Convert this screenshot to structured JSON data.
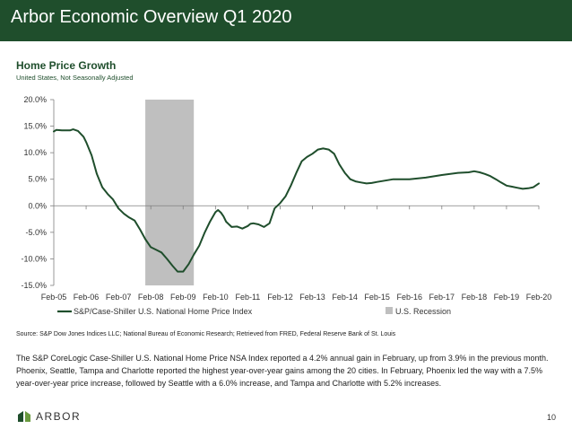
{
  "header": {
    "title": "Arbor Economic Overview Q1 2020"
  },
  "chart_data": {
    "type": "line",
    "title": "Home Price Growth",
    "subtitle": "United States, Not Seasonally Adjusted",
    "xlabel": "",
    "ylabel": "",
    "ylim": [
      -15,
      20
    ],
    "xlim": [
      0,
      15
    ],
    "y_ticks": [
      20,
      15,
      10,
      5,
      0,
      -5,
      -10,
      -15
    ],
    "y_tick_labels": [
      "20.0%",
      "15.0%",
      "10.0%",
      "5.0%",
      "0.0%",
      "-5.0%",
      "-10.0%",
      "-15.0%"
    ],
    "x_ticks": [
      0,
      1,
      2,
      3,
      4,
      5,
      6,
      7,
      8,
      9,
      10,
      11,
      12,
      13,
      14,
      15
    ],
    "x_tick_labels": [
      "Feb-05",
      "Feb-06",
      "Feb-07",
      "Feb-08",
      "Feb-09",
      "Feb-10",
      "Feb-11",
      "Feb-12",
      "Feb-13",
      "Feb-14",
      "Feb-15",
      "Feb-16",
      "Feb-17",
      "Feb-18",
      "Feb-19",
      "Feb-20"
    ],
    "recession": {
      "name": "U.S. Recession",
      "start": 2.83,
      "end": 4.33,
      "color": "#bfbfbf"
    },
    "series": [
      {
        "name": "S&P/Case-Shiller U.S. National Home Price Index",
        "color": "#1f4e2c",
        "x": [
          0,
          0.08,
          0.25,
          0.5,
          0.6,
          0.75,
          0.92,
          1.0,
          1.17,
          1.33,
          1.5,
          1.67,
          1.83,
          2.0,
          2.17,
          2.33,
          2.5,
          2.67,
          2.83,
          3.0,
          3.17,
          3.33,
          3.5,
          3.67,
          3.83,
          4.0,
          4.17,
          4.33,
          4.5,
          4.67,
          4.83,
          5.0,
          5.08,
          5.17,
          5.25,
          5.33,
          5.5,
          5.67,
          5.83,
          6.0,
          6.08,
          6.17,
          6.33,
          6.5,
          6.67,
          6.83,
          7.0,
          7.17,
          7.33,
          7.5,
          7.67,
          7.83,
          8.0,
          8.17,
          8.33,
          8.5,
          8.67,
          8.83,
          9.0,
          9.17,
          9.33,
          9.5,
          9.67,
          9.83,
          10.0,
          10.5,
          11.0,
          11.5,
          12.0,
          12.5,
          12.83,
          13.0,
          13.17,
          13.33,
          13.5,
          13.67,
          13.83,
          14.0,
          14.17,
          14.33,
          14.5,
          14.67,
          14.83,
          15.0
        ],
        "values": [
          14.0,
          14.3,
          14.2,
          14.2,
          14.4,
          14.1,
          13.0,
          12.0,
          9.5,
          6.0,
          3.5,
          2.2,
          1.2,
          -0.5,
          -1.5,
          -2.2,
          -2.8,
          -4.5,
          -6.3,
          -7.8,
          -8.3,
          -8.8,
          -10.0,
          -11.3,
          -12.4,
          -12.4,
          -11.0,
          -9.2,
          -7.5,
          -5.0,
          -3.0,
          -1.2,
          -0.8,
          -1.3,
          -2.0,
          -3.0,
          -4.0,
          -3.9,
          -4.3,
          -3.8,
          -3.4,
          -3.3,
          -3.5,
          -4.0,
          -3.3,
          -0.5,
          0.5,
          1.8,
          3.8,
          6.2,
          8.4,
          9.2,
          9.8,
          10.6,
          10.8,
          10.6,
          9.8,
          7.8,
          6.2,
          5.0,
          4.6,
          4.4,
          4.2,
          4.3,
          4.5,
          5.0,
          5.0,
          5.3,
          5.8,
          6.2,
          6.3,
          6.5,
          6.3,
          6.0,
          5.6,
          5.0,
          4.4,
          3.8,
          3.6,
          3.4,
          3.2,
          3.3,
          3.5,
          4.2
        ]
      }
    ],
    "legend": [
      "S&P/Case-Shiller U.S. National Home Price Index",
      "U.S. Recession"
    ],
    "legend_position": "bottom",
    "grid": false
  },
  "source": "Source: S&P Dow Jones Indices LLC; National Bureau of Economic Research; Retrieved from FRED, Federal Reserve Bank of St. Louis",
  "body_text": "The S&P CoreLogic Case-Shiller U.S. National Home Price NSA Index reported a 4.2% annual gain in February, up from 3.9% in the previous month. Phoenix, Seattle, Tampa and Charlotte reported the highest year-over-year gains among the 20 cities. In February, Phoenix led the way with a 7.5% year-over-year price increase, followed by Seattle with a 6.0% increase, and Tampa and Charlotte with 5.2% increases.",
  "footer": {
    "logo_text": "ARBOR",
    "page_number": "10"
  }
}
